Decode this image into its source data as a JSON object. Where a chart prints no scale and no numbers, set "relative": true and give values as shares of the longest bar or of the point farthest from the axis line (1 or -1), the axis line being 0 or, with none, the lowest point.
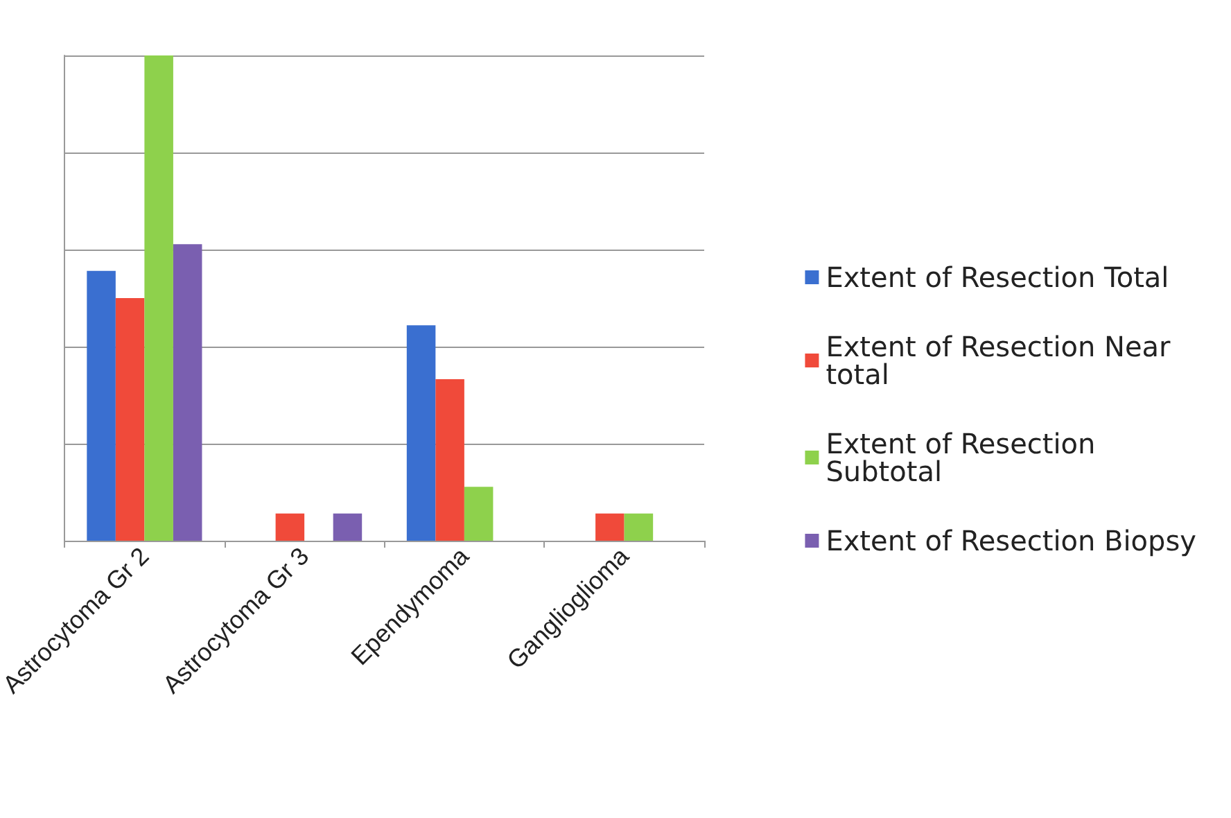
{
  "chart_data": {
    "type": "bar",
    "relative": true,
    "grid": "y",
    "legend": "right",
    "categories": [
      "Astrocytoma Gr 2",
      "Astrocytoma Gr 3",
      "Ependymoma",
      "Ganglioglioma"
    ],
    "series": [
      {
        "name": "Extent of Resection Total",
        "color": "#3a6fd0",
        "values": [
          0.556,
          null,
          0.444,
          null
        ]
      },
      {
        "name": "Extent of Resection Near total",
        "color": "#f04a3a",
        "values": [
          0.5,
          0.056,
          0.333,
          0.056
        ]
      },
      {
        "name": "Extent of Resection Subtotal",
        "color": "#8ed14c",
        "values": [
          1,
          null,
          0.111,
          0.056
        ]
      },
      {
        "name": "Extent of Resection Biopsy",
        "color": "#7a5fb0",
        "values": [
          0.611,
          0.056,
          null,
          null
        ]
      }
    ]
  }
}
